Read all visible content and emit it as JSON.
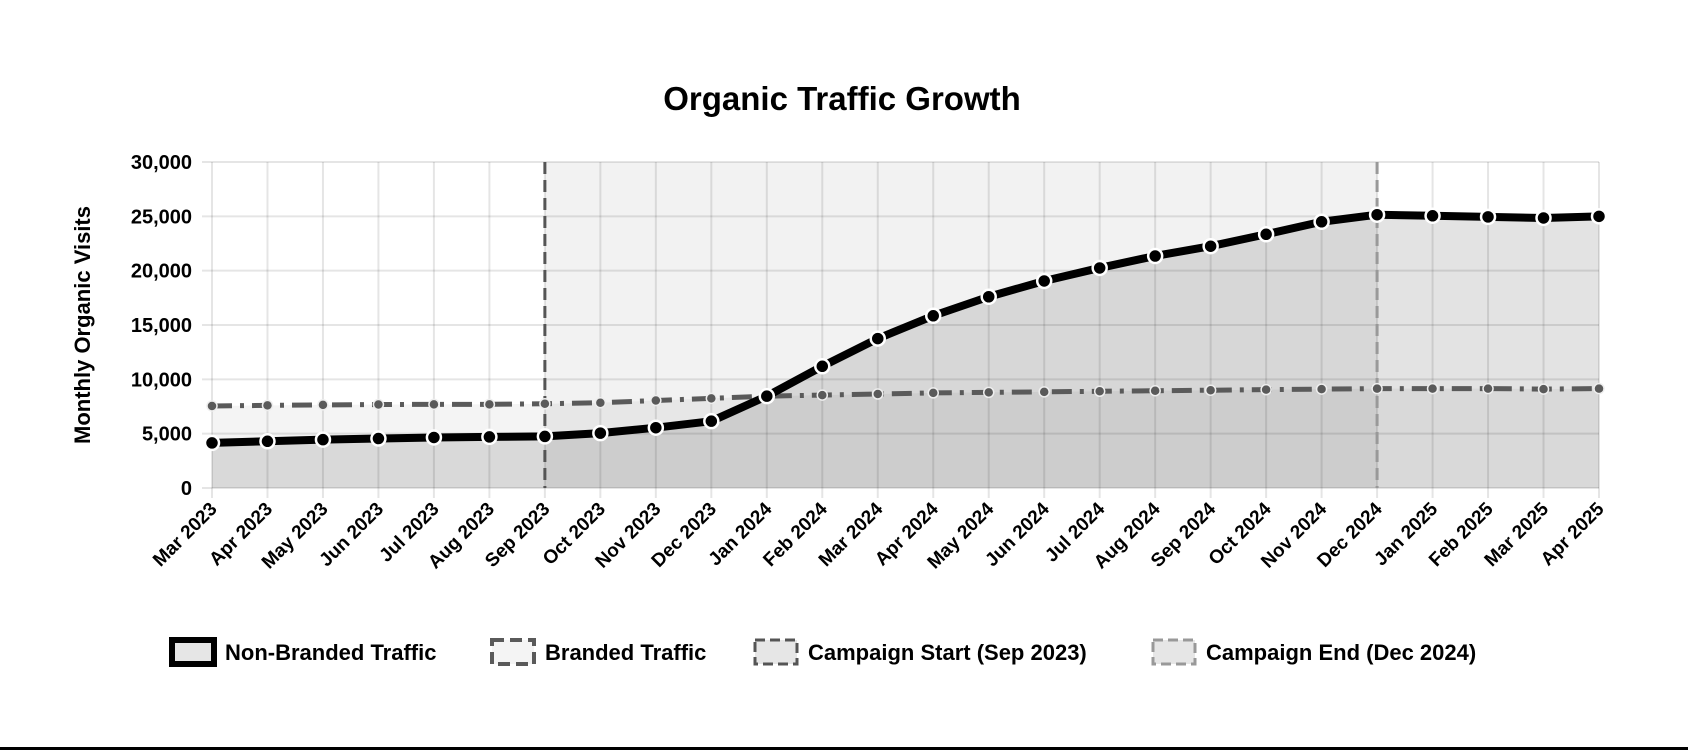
{
  "chart_data": {
    "type": "line",
    "title": "Organic Traffic Growth",
    "xlabel": "",
    "ylabel": "Monthly Organic Visits",
    "ylim": [
      0,
      30000
    ],
    "yticks": [
      0,
      5000,
      10000,
      15000,
      20000,
      25000,
      30000
    ],
    "ytick_labels": [
      "0",
      "5,000",
      "10,000",
      "15,000",
      "20,000",
      "25,000",
      "30,000"
    ],
    "grid": true,
    "legend_position": "bottom",
    "categories": [
      "Mar 2023",
      "Apr 2023",
      "May 2023",
      "Jun 2023",
      "Jul 2023",
      "Aug 2023",
      "Sep 2023",
      "Oct 2023",
      "Nov 2023",
      "Dec 2023",
      "Jan 2024",
      "Feb 2024",
      "Mar 2024",
      "Apr 2024",
      "May 2024",
      "Jun 2024",
      "Jul 2024",
      "Aug 2024",
      "Sep 2024",
      "Oct 2024",
      "Nov 2024",
      "Dec 2024",
      "Jan 2025",
      "Feb 2025",
      "Mar 2025",
      "Apr 2025"
    ],
    "series": [
      {
        "name": "Non-Branded Traffic",
        "color": "#000000",
        "style": "solid",
        "values": [
          4150,
          4300,
          4450,
          4550,
          4650,
          4700,
          4750,
          5050,
          5550,
          6150,
          8450,
          11200,
          13750,
          15850,
          17600,
          19050,
          20250,
          21350,
          22250,
          23350,
          24500,
          25150,
          25050,
          24950,
          24850,
          25000
        ]
      },
      {
        "name": "Branded Traffic",
        "color": "#5a5a5a",
        "style": "dash-dot",
        "values": [
          7550,
          7600,
          7650,
          7680,
          7700,
          7700,
          7750,
          7850,
          8050,
          8250,
          8450,
          8550,
          8650,
          8750,
          8800,
          8850,
          8900,
          8950,
          9000,
          9050,
          9100,
          9150,
          9150,
          9150,
          9100,
          9150
        ]
      }
    ],
    "annotations": [
      {
        "name": "Campaign Start (Sep 2023)",
        "x": "Sep 2023",
        "color": "#555555",
        "style": "dashed"
      },
      {
        "name": "Campaign End (Dec 2024)",
        "x": "Dec 2024",
        "color": "#999999",
        "style": "dashed"
      }
    ],
    "shaded_range": [
      "Sep 2023",
      "Dec 2024"
    ]
  }
}
